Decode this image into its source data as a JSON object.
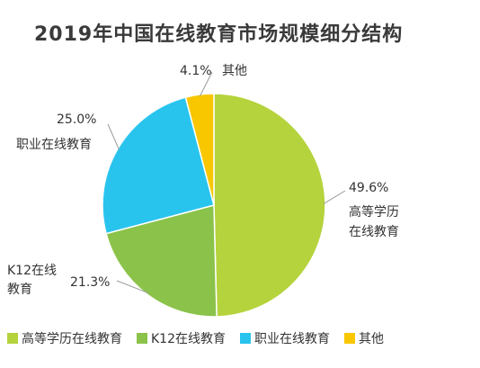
{
  "chart_data": {
    "type": "pie",
    "title": "2019年中国在线教育市场规模细分结构",
    "categories": [
      "高等学历在线教育",
      "K12在线教育",
      "职业在线教育",
      "其他"
    ],
    "values": [
      49.6,
      21.3,
      25.0,
      4.1
    ],
    "value_labels": [
      "49.6%",
      "21.3%",
      "25.0%",
      "4.1%"
    ],
    "slice_labels": [
      [
        "高等学历",
        "在线教育"
      ],
      [
        "K12在线",
        "教育"
      ],
      [
        "职业在线教育"
      ],
      [
        "其他"
      ]
    ],
    "colors": [
      "#b5d33c",
      "#8bc34a",
      "#29c4ee",
      "#f8c700"
    ],
    "legend_position": "bottom"
  }
}
